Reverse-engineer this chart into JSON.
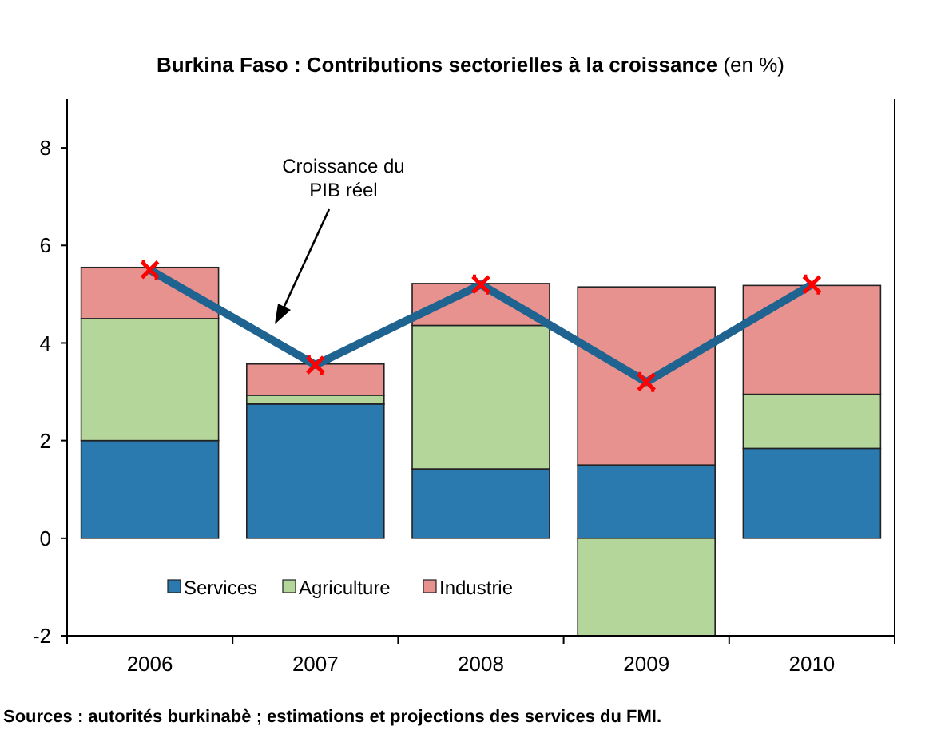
{
  "chart_data": {
    "type": "bar",
    "title": "Burkina Faso : Contributions  sectorielles  à la croissance",
    "subtitle": "(en %)",
    "categories": [
      "2006",
      "2007",
      "2008",
      "2009",
      "2010"
    ],
    "stacked": true,
    "series": [
      {
        "name": "Services",
        "color": "#2a7ab0",
        "values": [
          2.0,
          2.75,
          1.42,
          1.5,
          1.84
        ]
      },
      {
        "name": "Agriculture",
        "color": "#b5d69a",
        "values": [
          2.5,
          0.18,
          2.94,
          -2.0,
          1.11
        ]
      },
      {
        "name": "Industrie",
        "color": "#e8928f",
        "values": [
          1.05,
          0.64,
          0.86,
          3.65,
          2.23
        ]
      },
      {
        "type": "line",
        "color": "#1f6391",
        "marker": "cross",
        "values": [
          5.5,
          3.55,
          5.2,
          3.2,
          5.2
        ]
      }
    ],
    "ylim": [
      -2,
      9
    ],
    "yticks": [
      -2,
      0,
      2,
      4,
      6,
      8
    ],
    "grid": false,
    "legend": "bottom left",
    "annotations": [
      "Croissance du\nPIB réel",
      "Sources :  autorités burkinabè ; estimations et projections des services du FMI."
    ]
  }
}
